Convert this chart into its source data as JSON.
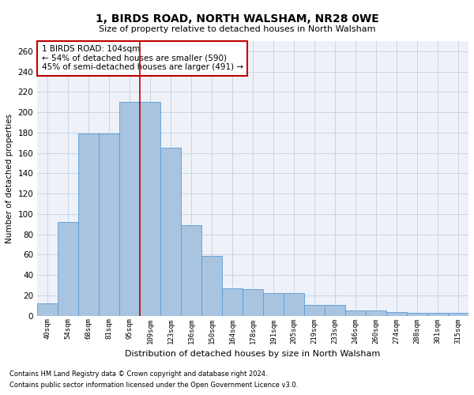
{
  "title": "1, BIRDS ROAD, NORTH WALSHAM, NR28 0WE",
  "subtitle": "Size of property relative to detached houses in North Walsham",
  "xlabel": "Distribution of detached houses by size in North Walsham",
  "ylabel": "Number of detached properties",
  "categories": [
    "40sqm",
    "54sqm",
    "68sqm",
    "81sqm",
    "95sqm",
    "109sqm",
    "123sqm",
    "136sqm",
    "150sqm",
    "164sqm",
    "178sqm",
    "191sqm",
    "205sqm",
    "219sqm",
    "233sqm",
    "246sqm",
    "260sqm",
    "274sqm",
    "288sqm",
    "301sqm",
    "315sqm"
  ],
  "values": [
    12,
    92,
    179,
    179,
    210,
    210,
    165,
    89,
    59,
    27,
    26,
    22,
    22,
    11,
    11,
    5,
    5,
    4,
    3,
    3,
    3
  ],
  "bar_color": "#a8c4e0",
  "bar_edge_color": "#5b9bd5",
  "vline_x_index": 5,
  "vline_color": "#c00000",
  "annotation_text": "1 BIRDS ROAD: 104sqm\n← 54% of detached houses are smaller (590)\n45% of semi-detached houses are larger (491) →",
  "annotation_box_color": "white",
  "annotation_box_edge_color": "#c00000",
  "ylim": [
    0,
    270
  ],
  "yticks": [
    0,
    20,
    40,
    60,
    80,
    100,
    120,
    140,
    160,
    180,
    200,
    220,
    240,
    260
  ],
  "grid_color": "#c8d4e8",
  "background_color": "#eef2f8",
  "footer_line1": "Contains HM Land Registry data © Crown copyright and database right 2024.",
  "footer_line2": "Contains public sector information licensed under the Open Government Licence v3.0."
}
